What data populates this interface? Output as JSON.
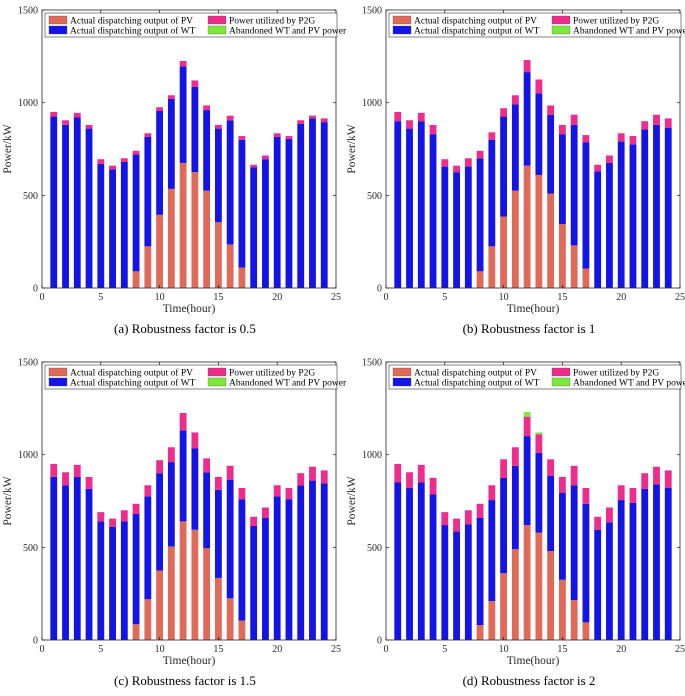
{
  "chart_data": [
    {
      "type": "bar",
      "stacked": true,
      "caption": "(a)  Robustness factor is 0.5",
      "xlabel": "Time(hour)",
      "ylabel": "Power/kW",
      "xlim": [
        0,
        25
      ],
      "ylim": [
        0,
        1500
      ],
      "xticks": [
        "0",
        "5",
        "10",
        "15",
        "20",
        "25"
      ],
      "yticks": [
        "0",
        "500",
        "1000",
        "1500"
      ],
      "legend_position": "top",
      "categories": [
        1,
        2,
        3,
        4,
        5,
        6,
        7,
        8,
        9,
        10,
        11,
        12,
        13,
        14,
        15,
        16,
        17,
        18,
        19,
        20,
        21,
        22,
        23,
        24
      ],
      "series": [
        {
          "name": "Actual dispatching output of PV",
          "color": "#e06a5a",
          "values": [
            0,
            0,
            0,
            0,
            0,
            0,
            0,
            90,
            225,
            395,
            535,
            675,
            625,
            525,
            355,
            235,
            110,
            0,
            0,
            0,
            0,
            0,
            0,
            0
          ]
        },
        {
          "name": "Actual dispatching output of WT",
          "color": "#1414e6",
          "values": [
            925,
            880,
            920,
            860,
            670,
            640,
            680,
            630,
            590,
            560,
            485,
            520,
            460,
            435,
            505,
            670,
            690,
            650,
            695,
            815,
            805,
            885,
            915,
            895
          ]
        },
        {
          "name": "Power utilized by P2G",
          "color": "#ee2c8c",
          "values": [
            25,
            25,
            25,
            20,
            25,
            20,
            20,
            20,
            20,
            20,
            20,
            30,
            35,
            25,
            20,
            25,
            20,
            15,
            20,
            20,
            15,
            20,
            15,
            20
          ]
        },
        {
          "name": "Abandoned WT and PV power",
          "color": "#7ee83c",
          "values": [
            0,
            0,
            0,
            0,
            0,
            0,
            0,
            0,
            0,
            0,
            0,
            0,
            0,
            0,
            0,
            0,
            0,
            0,
            0,
            0,
            0,
            0,
            0,
            0
          ]
        }
      ]
    },
    {
      "type": "bar",
      "stacked": true,
      "caption": "(b)  Robustness factor is 1",
      "xlabel": "Time(hour)",
      "ylabel": "Power/kW",
      "xlim": [
        0,
        25
      ],
      "ylim": [
        0,
        1500
      ],
      "xticks": [
        "0",
        "5",
        "10",
        "15",
        "20",
        "25"
      ],
      "yticks": [
        "0",
        "500",
        "1000",
        "1500"
      ],
      "legend_position": "top",
      "categories": [
        1,
        2,
        3,
        4,
        5,
        6,
        7,
        8,
        9,
        10,
        11,
        12,
        13,
        14,
        15,
        16,
        17,
        18,
        19,
        20,
        21,
        22,
        23,
        24
      ],
      "series": [
        {
          "name": "Actual dispatching output of PV",
          "color": "#e06a5a",
          "values": [
            0,
            0,
            0,
            0,
            0,
            0,
            0,
            90,
            225,
            385,
            525,
            660,
            610,
            510,
            345,
            230,
            105,
            0,
            0,
            0,
            0,
            0,
            0,
            0
          ]
        },
        {
          "name": "Actual dispatching output of WT",
          "color": "#1414e6",
          "values": [
            900,
            860,
            900,
            830,
            655,
            625,
            655,
            610,
            575,
            540,
            465,
            505,
            440,
            425,
            485,
            650,
            680,
            630,
            675,
            790,
            775,
            855,
            880,
            865
          ]
        },
        {
          "name": "Power utilized by P2G",
          "color": "#ee2c8c",
          "values": [
            50,
            45,
            45,
            50,
            40,
            35,
            45,
            40,
            40,
            45,
            50,
            65,
            75,
            50,
            50,
            55,
            40,
            35,
            40,
            45,
            45,
            45,
            55,
            50
          ]
        },
        {
          "name": "Abandoned WT and PV power",
          "color": "#7ee83c",
          "values": [
            0,
            0,
            0,
            0,
            0,
            0,
            0,
            0,
            0,
            0,
            0,
            0,
            0,
            0,
            0,
            0,
            0,
            0,
            0,
            0,
            0,
            0,
            0,
            0
          ]
        }
      ]
    },
    {
      "type": "bar",
      "stacked": true,
      "caption": "(c)  Robustness factor is 1.5",
      "xlabel": "Time(hour)",
      "ylabel": "Power/kW",
      "xlim": [
        0,
        25
      ],
      "ylim": [
        0,
        1500
      ],
      "xticks": [
        "0",
        "5",
        "10",
        "15",
        "20",
        "25"
      ],
      "yticks": [
        "0",
        "500",
        "1000",
        "1500"
      ],
      "legend_position": "top",
      "categories": [
        1,
        2,
        3,
        4,
        5,
        6,
        7,
        8,
        9,
        10,
        11,
        12,
        13,
        14,
        15,
        16,
        17,
        18,
        19,
        20,
        21,
        22,
        23,
        24
      ],
      "series": [
        {
          "name": "Actual dispatching output of PV",
          "color": "#e06a5a",
          "values": [
            0,
            0,
            0,
            0,
            0,
            0,
            0,
            85,
            220,
            375,
            505,
            640,
            595,
            495,
            335,
            225,
            105,
            0,
            0,
            0,
            0,
            0,
            0,
            0
          ]
        },
        {
          "name": "Actual dispatching output of WT",
          "color": "#1414e6",
          "values": [
            880,
            835,
            880,
            815,
            640,
            610,
            640,
            595,
            555,
            525,
            455,
            490,
            440,
            410,
            475,
            640,
            655,
            615,
            660,
            775,
            760,
            835,
            860,
            845
          ]
        },
        {
          "name": "Power utilized by P2G",
          "color": "#ee2c8c",
          "values": [
            70,
            70,
            65,
            65,
            50,
            45,
            60,
            55,
            60,
            70,
            80,
            95,
            85,
            75,
            70,
            75,
            60,
            50,
            55,
            60,
            60,
            65,
            75,
            70
          ]
        },
        {
          "name": "Abandoned WT and PV power",
          "color": "#7ee83c",
          "values": [
            0,
            0,
            0,
            0,
            0,
            0,
            0,
            0,
            0,
            0,
            0,
            0,
            0,
            0,
            0,
            0,
            0,
            0,
            0,
            0,
            0,
            0,
            0,
            0
          ]
        }
      ]
    },
    {
      "type": "bar",
      "stacked": true,
      "caption": "(d)  Robustness factor is 2",
      "xlabel": "Time(hour)",
      "ylabel": "Power/kW",
      "xlim": [
        0,
        25
      ],
      "ylim": [
        0,
        1500
      ],
      "xticks": [
        "0",
        "5",
        "10",
        "15",
        "20",
        "25"
      ],
      "yticks": [
        "0",
        "500",
        "1000",
        "1500"
      ],
      "legend_position": "top",
      "categories": [
        1,
        2,
        3,
        4,
        5,
        6,
        7,
        8,
        9,
        10,
        11,
        12,
        13,
        14,
        15,
        16,
        17,
        18,
        19,
        20,
        21,
        22,
        23,
        24
      ],
      "series": [
        {
          "name": "Actual dispatching output of PV",
          "color": "#e06a5a",
          "values": [
            0,
            0,
            0,
            0,
            0,
            0,
            0,
            80,
            210,
            360,
            490,
            620,
            580,
            480,
            325,
            215,
            95,
            0,
            0,
            0,
            0,
            0,
            0,
            0
          ]
        },
        {
          "name": "Actual dispatching output of WT",
          "color": "#1414e6",
          "values": [
            850,
            820,
            850,
            785,
            620,
            585,
            625,
            580,
            545,
            515,
            450,
            480,
            430,
            405,
            470,
            620,
            640,
            595,
            635,
            755,
            740,
            815,
            840,
            820
          ]
        },
        {
          "name": "Power utilized by P2G",
          "color": "#ee2c8c",
          "values": [
            100,
            85,
            95,
            90,
            70,
            70,
            75,
            75,
            80,
            100,
            100,
            105,
            100,
            90,
            85,
            105,
            85,
            70,
            80,
            80,
            80,
            85,
            95,
            95
          ]
        },
        {
          "name": "Abandoned WT and PV power",
          "color": "#7ee83c",
          "values": [
            0,
            0,
            0,
            0,
            0,
            0,
            0,
            0,
            0,
            0,
            0,
            25,
            10,
            0,
            0,
            0,
            0,
            0,
            0,
            0,
            0,
            0,
            0,
            0
          ]
        }
      ]
    }
  ]
}
